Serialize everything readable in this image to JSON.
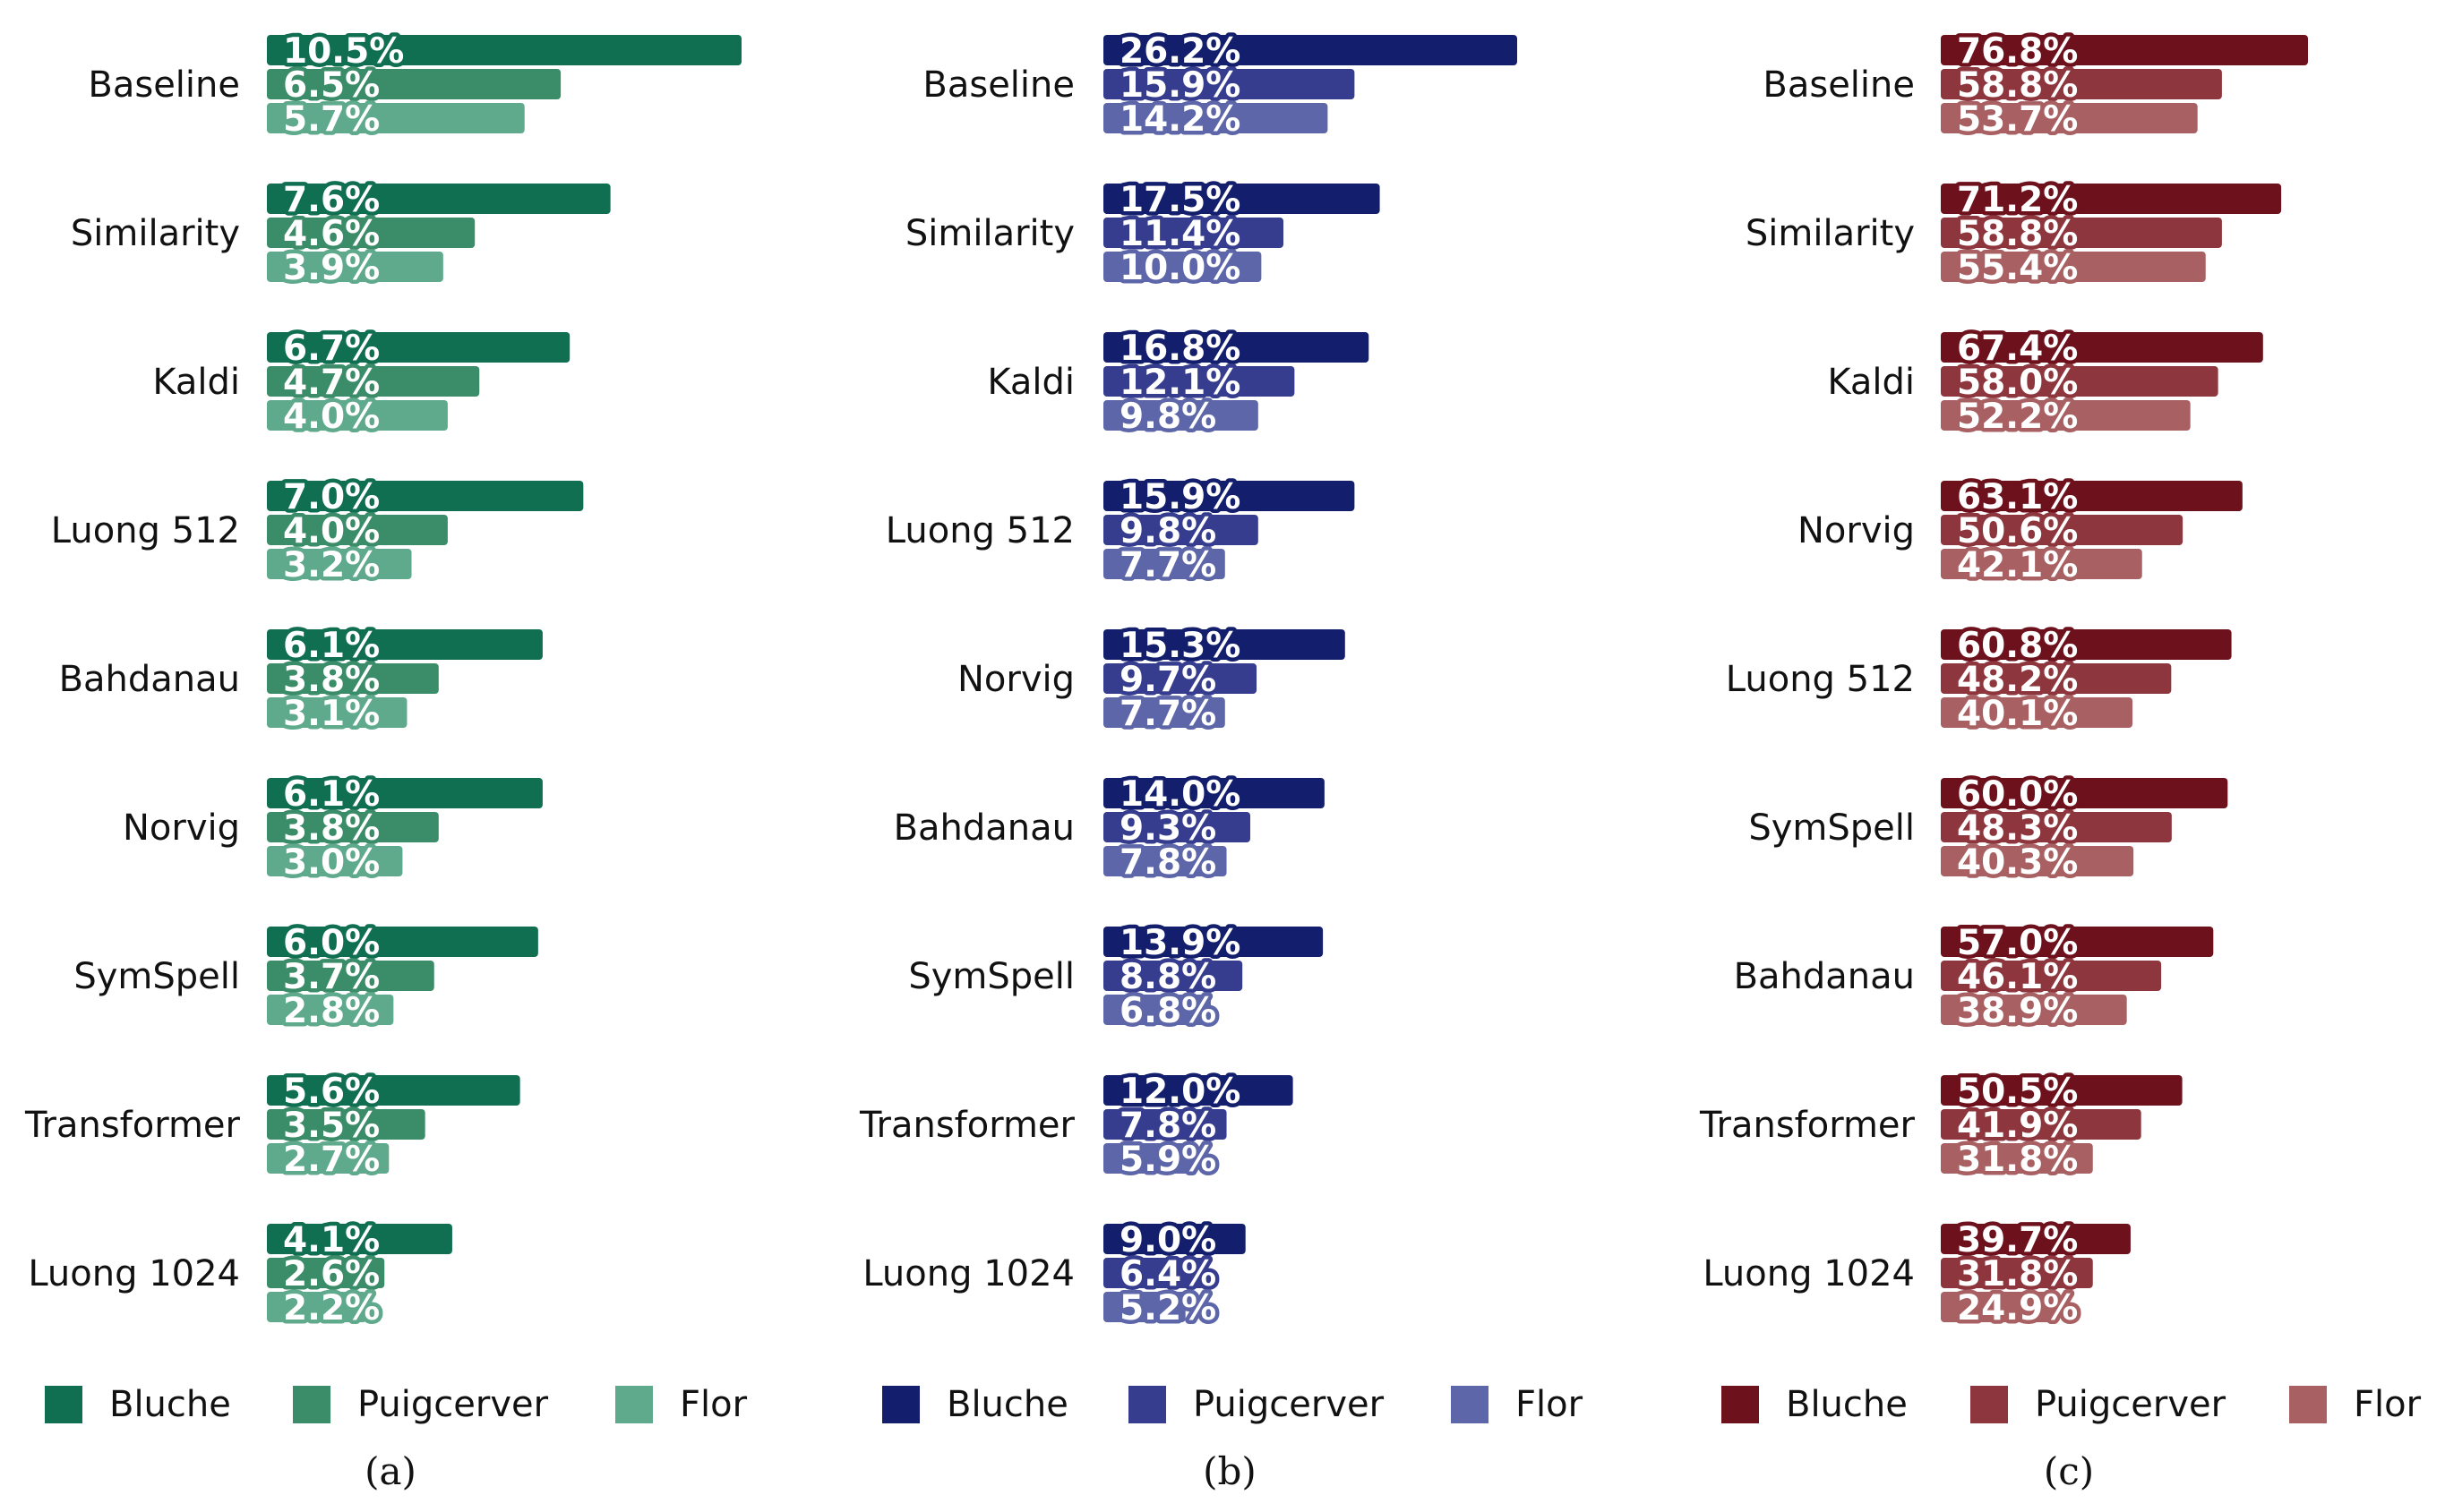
{
  "chart_data": [
    {
      "type": "bar",
      "orientation": "horizontal",
      "panel_label": "(a)",
      "categories": [
        "Baseline",
        "Similarity",
        "Kaldi",
        "Luong 512",
        "Bahdanau",
        "Norvig",
        "SymSpell",
        "Transformer",
        "Luong 1024"
      ],
      "series": [
        {
          "name": "Bluche",
          "values": [
            10.5,
            7.6,
            6.7,
            7.0,
            6.1,
            6.1,
            6.0,
            5.6,
            4.1
          ],
          "labels": [
            "10.5%",
            "7.6%",
            "6.7%",
            "7.0%",
            "6.1%",
            "6.1%",
            "6.0%",
            "5.6%",
            "4.1%"
          ],
          "color": "#106e51"
        },
        {
          "name": "Puigcerver",
          "values": [
            6.5,
            4.6,
            4.7,
            4.0,
            3.8,
            3.8,
            3.7,
            3.5,
            2.6
          ],
          "labels": [
            "6.5%",
            "4.6%",
            "4.7%",
            "4.0%",
            "3.8%",
            "3.8%",
            "3.7%",
            "3.5%",
            "2.6%"
          ],
          "color": "#3b8c68"
        },
        {
          "name": "Flor",
          "values": [
            5.7,
            3.9,
            4.0,
            3.2,
            3.1,
            3.0,
            2.8,
            2.7,
            2.2
          ],
          "labels": [
            "5.7%",
            "3.9%",
            "4.0%",
            "3.2%",
            "3.1%",
            "3.0%",
            "2.8%",
            "2.7%",
            "2.2%"
          ],
          "color": "#5fa98c"
        }
      ],
      "xlim": [
        0,
        10.5
      ],
      "legend_position": "bottom"
    },
    {
      "type": "bar",
      "orientation": "horizontal",
      "panel_label": "(b)",
      "categories": [
        "Baseline",
        "Similarity",
        "Kaldi",
        "Luong 512",
        "Norvig",
        "Bahdanau",
        "SymSpell",
        "Transformer",
        "Luong 1024"
      ],
      "series": [
        {
          "name": "Bluche",
          "values": [
            26.2,
            17.5,
            16.8,
            15.9,
            15.3,
            14.0,
            13.9,
            12.0,
            9.0
          ],
          "labels": [
            "26.2%",
            "17.5%",
            "16.8%",
            "15.9%",
            "15.3%",
            "14.0%",
            "13.9%",
            "12.0%",
            "9.0%"
          ],
          "color": "#131f6c"
        },
        {
          "name": "Puigcerver",
          "values": [
            15.9,
            11.4,
            12.1,
            9.8,
            9.7,
            9.3,
            8.8,
            7.8,
            6.4
          ],
          "labels": [
            "15.9%",
            "11.4%",
            "12.1%",
            "9.8%",
            "9.7%",
            "9.3%",
            "8.8%",
            "7.8%",
            "6.4%"
          ],
          "color": "#363d8f"
        },
        {
          "name": "Flor",
          "values": [
            14.2,
            10.0,
            9.8,
            7.7,
            7.7,
            7.8,
            6.8,
            5.9,
            5.2
          ],
          "labels": [
            "14.2%",
            "10.0%",
            "9.8%",
            "7.7%",
            "7.7%",
            "7.8%",
            "6.8%",
            "5.9%",
            "5.2%"
          ],
          "color": "#5d66a8"
        }
      ],
      "xlim": [
        0,
        26.2
      ],
      "legend_position": "bottom"
    },
    {
      "type": "bar",
      "orientation": "horizontal",
      "panel_label": "(c)",
      "categories": [
        "Baseline",
        "Similarity",
        "Kaldi",
        "Norvig",
        "Luong 512",
        "SymSpell",
        "Bahdanau",
        "Transformer",
        "Luong 1024"
      ],
      "series": [
        {
          "name": "Bluche",
          "values": [
            76.8,
            71.2,
            67.4,
            63.1,
            60.8,
            60.0,
            57.0,
            50.5,
            39.7
          ],
          "labels": [
            "76.8%",
            "71.2%",
            "67.4%",
            "63.1%",
            "60.8%",
            "60.0%",
            "57.0%",
            "50.5%",
            "39.7%"
          ],
          "color": "#6d111c"
        },
        {
          "name": "Puigcerver",
          "values": [
            58.8,
            58.8,
            58.0,
            50.6,
            48.2,
            48.3,
            46.1,
            41.9,
            31.8
          ],
          "labels": [
            "58.8%",
            "58.8%",
            "58.0%",
            "50.6%",
            "48.2%",
            "48.3%",
            "46.1%",
            "41.9%",
            "31.8%"
          ],
          "color": "#8e363d"
        },
        {
          "name": "Flor",
          "values": [
            53.7,
            55.4,
            52.2,
            42.1,
            40.1,
            40.3,
            38.9,
            31.8,
            24.9
          ],
          "labels": [
            "53.7%",
            "55.4%",
            "52.2%",
            "42.1%",
            "40.1%",
            "40.3%",
            "38.9%",
            "31.8%",
            "24.9%"
          ],
          "color": "#a86062"
        }
      ],
      "xlim": [
        0,
        76.8
      ],
      "legend_position": "bottom"
    }
  ]
}
